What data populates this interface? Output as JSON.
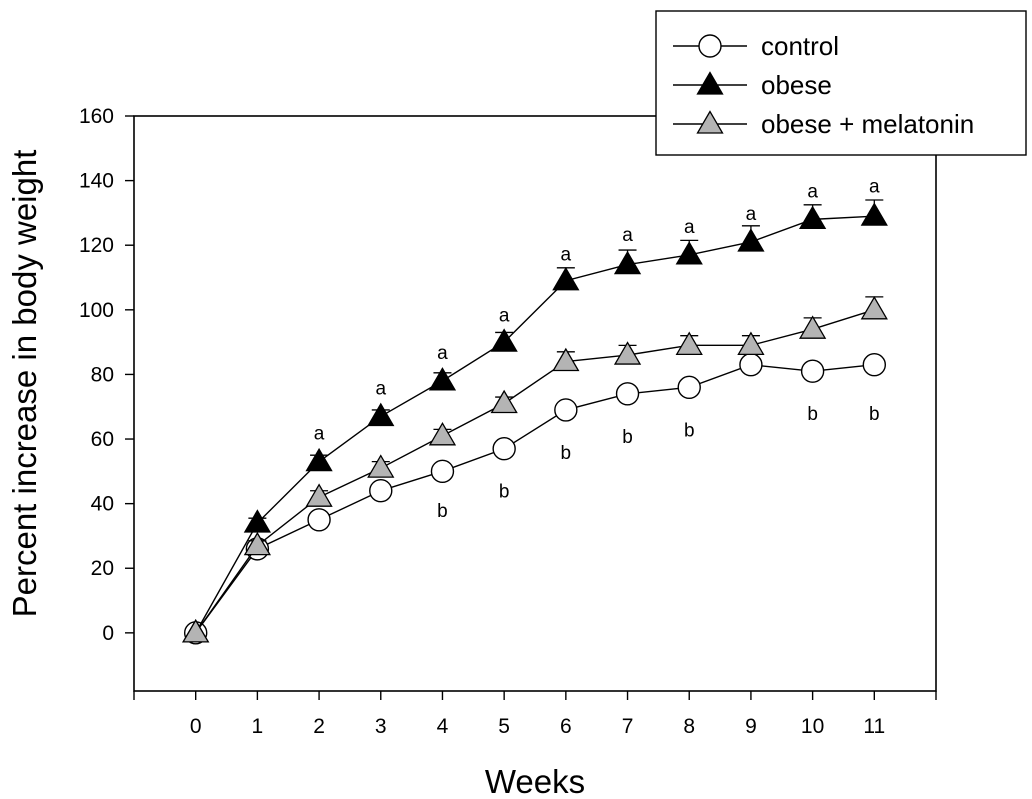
{
  "chart_data": {
    "type": "line",
    "xlabel": "Weeks",
    "ylabel": "Percent increase in body weight",
    "x": [
      0,
      1,
      2,
      3,
      4,
      5,
      6,
      7,
      8,
      9,
      10,
      11
    ],
    "xlim": [
      -1,
      12
    ],
    "ylim": [
      -18,
      160
    ],
    "yticks": [
      0,
      20,
      40,
      60,
      80,
      100,
      120,
      140,
      160
    ],
    "grid": false,
    "legend_position": "top-right",
    "series": [
      {
        "name": "control",
        "marker": "circle",
        "fill": "#ffffff",
        "values": [
          0,
          26,
          35,
          44,
          50,
          57,
          69,
          74,
          76,
          83,
          81,
          83
        ],
        "errors": [
          0,
          1.5,
          1.5,
          1.5,
          1.5,
          1.5,
          1.5,
          1.5,
          1.5,
          2,
          1.5,
          1.5
        ]
      },
      {
        "name": "obese",
        "marker": "triangle",
        "fill": "#000000",
        "values": [
          0,
          34,
          53,
          67,
          78,
          90,
          109,
          114,
          117,
          121,
          128,
          129
        ],
        "errors": [
          0,
          1.5,
          2,
          2,
          2.5,
          3,
          4,
          4.5,
          4.5,
          5,
          4.5,
          5
        ]
      },
      {
        "name": "obese + melatonin",
        "marker": "triangle",
        "fill": "#b4b4b4",
        "values": [
          0,
          27,
          42,
          51,
          61,
          71,
          84,
          86,
          89,
          89,
          94,
          100
        ],
        "errors": [
          0,
          1.5,
          2,
          2,
          2,
          2,
          3,
          3,
          3,
          3,
          3.5,
          4
        ]
      }
    ],
    "annotations": [
      {
        "text": "a",
        "x": 2,
        "y": 62
      },
      {
        "text": "a",
        "x": 3,
        "y": 76
      },
      {
        "text": "a",
        "x": 4,
        "y": 87
      },
      {
        "text": "a",
        "x": 5,
        "y": 98.5
      },
      {
        "text": "a",
        "x": 6,
        "y": 117.5
      },
      {
        "text": "a",
        "x": 7,
        "y": 123.5
      },
      {
        "text": "a",
        "x": 8,
        "y": 126
      },
      {
        "text": "a",
        "x": 9,
        "y": 130
      },
      {
        "text": "a",
        "x": 10,
        "y": 137
      },
      {
        "text": "a",
        "x": 11,
        "y": 138.5
      },
      {
        "text": "b",
        "x": 4,
        "y": 38
      },
      {
        "text": "b",
        "x": 5,
        "y": 44
      },
      {
        "text": "b",
        "x": 6,
        "y": 56
      },
      {
        "text": "b",
        "x": 7,
        "y": 61
      },
      {
        "text": "b",
        "x": 8,
        "y": 63
      },
      {
        "text": "b",
        "x": 10,
        "y": 68
      },
      {
        "text": "b",
        "x": 11,
        "y": 68
      }
    ]
  }
}
